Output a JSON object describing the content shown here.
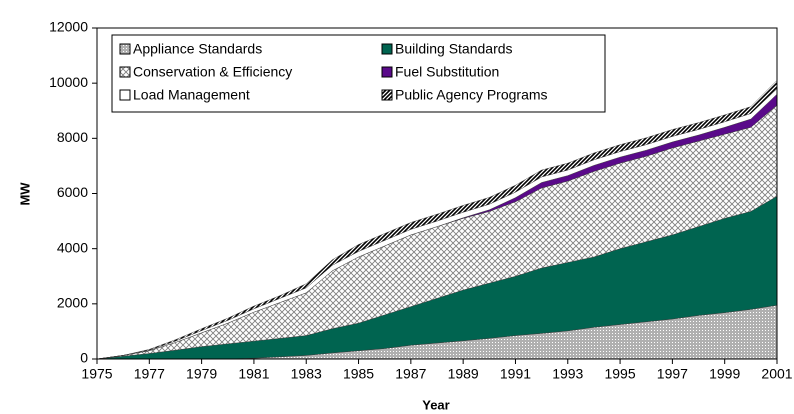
{
  "chart_data": {
    "type": "stacked-area",
    "x_label": "Year",
    "y_label": "MW",
    "x": [
      1975,
      1976,
      1977,
      1978,
      1979,
      1980,
      1981,
      1982,
      1983,
      1984,
      1985,
      1986,
      1987,
      1988,
      1989,
      1990,
      1991,
      1992,
      1993,
      1994,
      1995,
      1996,
      1997,
      1998,
      1999,
      2000,
      2001
    ],
    "xlim": [
      1975,
      2001
    ],
    "xticks": [
      1975,
      1977,
      1979,
      1981,
      1983,
      1985,
      1987,
      1989,
      1991,
      1993,
      1995,
      1997,
      1999,
      2001
    ],
    "ylim": [
      0,
      12000
    ],
    "yticks": [
      0,
      2000,
      4000,
      6000,
      8000,
      10000,
      12000
    ],
    "legend": "upper left",
    "series": [
      {
        "name": "Appliance Standards",
        "color": "#b0b0b0",
        "pattern": "dots",
        "values": [
          0,
          0,
          0,
          0,
          0,
          0,
          30,
          80,
          130,
          220,
          300,
          380,
          500,
          580,
          660,
          750,
          850,
          930,
          1020,
          1150,
          1250,
          1350,
          1450,
          1580,
          1680,
          1800,
          1950
        ]
      },
      {
        "name": "Building Standards",
        "color": "#006450",
        "pattern": "solid",
        "values": [
          0,
          100,
          200,
          320,
          450,
          550,
          620,
          670,
          720,
          880,
          1000,
          1220,
          1400,
          1620,
          1840,
          2000,
          2150,
          2370,
          2480,
          2550,
          2750,
          2900,
          3050,
          3220,
          3420,
          3550,
          3950
        ]
      },
      {
        "name": "Conservation & Efficiency",
        "color": "#808080",
        "pattern": "crosshatch",
        "values": [
          0,
          30,
          100,
          280,
          500,
          750,
          1050,
          1300,
          1550,
          2100,
          2400,
          2500,
          2600,
          2600,
          2600,
          2600,
          2700,
          2900,
          2950,
          3100,
          3100,
          3100,
          3150,
          3100,
          3050,
          3050,
          3300
        ]
      },
      {
        "name": "Fuel Substitution",
        "color": "#5a0a8a",
        "pattern": "solid",
        "values": [
          0,
          0,
          0,
          0,
          0,
          0,
          0,
          0,
          0,
          0,
          0,
          0,
          0,
          0,
          20,
          60,
          150,
          200,
          200,
          220,
          220,
          220,
          220,
          220,
          250,
          300,
          400
        ]
      },
      {
        "name": "Load Management",
        "color": "#ffffff",
        "pattern": "solid",
        "values": [
          0,
          0,
          20,
          50,
          80,
          100,
          120,
          150,
          180,
          200,
          200,
          200,
          200,
          200,
          200,
          200,
          200,
          200,
          200,
          200,
          200,
          200,
          200,
          200,
          200,
          200,
          200
        ]
      },
      {
        "name": "Public Agency Programs",
        "color": "#000000",
        "pattern": "hatch",
        "values": [
          0,
          0,
          30,
          50,
          70,
          80,
          100,
          100,
          150,
          200,
          250,
          250,
          250,
          250,
          250,
          250,
          250,
          250,
          250,
          250,
          250,
          250,
          250,
          250,
          250,
          250,
          300
        ]
      }
    ]
  }
}
